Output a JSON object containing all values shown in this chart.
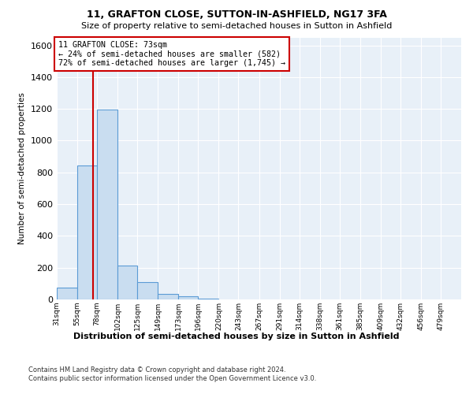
{
  "title1": "11, GRAFTON CLOSE, SUTTON-IN-ASHFIELD, NG17 3FA",
  "title2": "Size of property relative to semi-detached houses in Sutton in Ashfield",
  "xlabel": "Distribution of semi-detached houses by size in Sutton in Ashfield",
  "ylabel": "Number of semi-detached properties",
  "footer1": "Contains HM Land Registry data © Crown copyright and database right 2024.",
  "footer2": "Contains public sector information licensed under the Open Government Licence v3.0.",
  "bar_edges": [
    31,
    55,
    78,
    102,
    125,
    149,
    173,
    196,
    220,
    243,
    267,
    291,
    314,
    338,
    361,
    385,
    409,
    432,
    456,
    479,
    503
  ],
  "bar_heights": [
    75,
    845,
    1195,
    215,
    110,
    35,
    20,
    5,
    0,
    0,
    0,
    0,
    0,
    0,
    0,
    0,
    0,
    0,
    0,
    0
  ],
  "bar_color": "#c9ddf0",
  "bar_edge_color": "#5b9bd5",
  "property_size": 73,
  "vline_color": "#cc0000",
  "ylim": [
    0,
    1650
  ],
  "yticks": [
    0,
    200,
    400,
    600,
    800,
    1000,
    1200,
    1400,
    1600
  ],
  "annotation_text": "11 GRAFTON CLOSE: 73sqm\n← 24% of semi-detached houses are smaller (582)\n72% of semi-detached houses are larger (1,745) →",
  "annotation_box_color": "#ffffff",
  "annotation_box_edge": "#cc0000",
  "plot_bg_color": "#e8f0f8"
}
